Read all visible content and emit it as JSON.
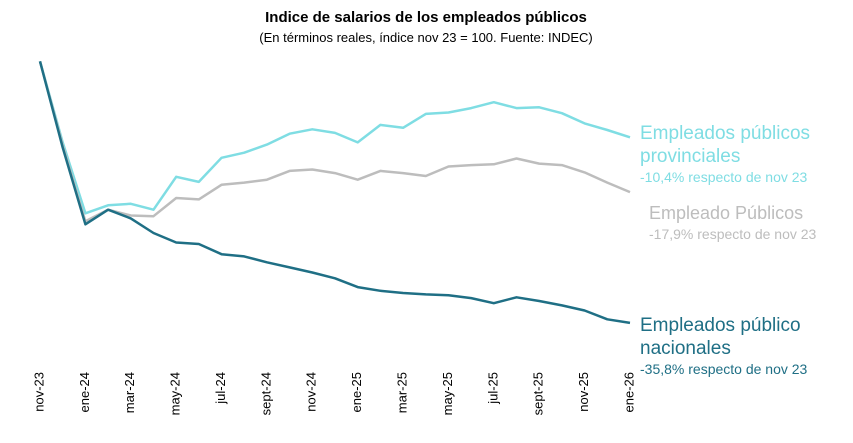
{
  "chart_data": {
    "type": "line",
    "title": "Indice de salarios de los empleados públicos",
    "subtitle": "(En términos reales, índice nov 23 = 100. Fuente: INDEC)",
    "categories": [
      "nov-23",
      null,
      "ene-24",
      null,
      "mar-24",
      null,
      "may-24",
      null,
      "jul-24",
      null,
      "sept-24",
      null,
      "nov-24",
      null,
      "ene-25",
      null,
      "mar-25",
      null,
      "may-25",
      null,
      "jul-25",
      null,
      "sept-25",
      null,
      "nov-25",
      null,
      "ene-26"
    ],
    "ylim": [
      62,
      101
    ],
    "series": [
      {
        "name": "Empleados públicos provinciales",
        "note": "-10,4% respecto de nov 23",
        "color": "#7fdde3",
        "values": [
          100,
          88.9,
          79.2,
          80.3,
          80.5,
          79.7,
          84.2,
          83.5,
          86.8,
          87.5,
          88.6,
          90.1,
          90.7,
          90.2,
          88.9,
          91.3,
          90.9,
          92.8,
          93.0,
          93.6,
          94.4,
          93.6,
          93.7,
          92.9,
          91.5,
          90.6,
          89.6
        ]
      },
      {
        "name": "Empleado Públicos",
        "note": "-17,9% respecto de nov 23",
        "color": "#bdbdbd",
        "values": [
          100,
          88.5,
          78.1,
          79.7,
          78.9,
          78.8,
          81.3,
          81.1,
          83.1,
          83.4,
          83.8,
          85.0,
          85.2,
          84.7,
          83.8,
          85.0,
          84.7,
          84.3,
          85.6,
          85.8,
          85.9,
          86.7,
          86.0,
          85.8,
          84.8,
          83.4,
          82.1
        ]
      },
      {
        "name": "Empleados público nacionales",
        "note": "-35,8% respecto de nov 23",
        "color": "#1f6f85",
        "values": [
          100,
          88.2,
          77.7,
          79.7,
          78.5,
          76.5,
          75.2,
          75.0,
          73.6,
          73.3,
          72.5,
          71.8,
          71.1,
          70.3,
          69.1,
          68.6,
          68.3,
          68.1,
          68.0,
          67.6,
          66.9,
          67.7,
          67.2,
          66.6,
          65.9,
          64.7,
          64.2
        ]
      }
    ]
  }
}
